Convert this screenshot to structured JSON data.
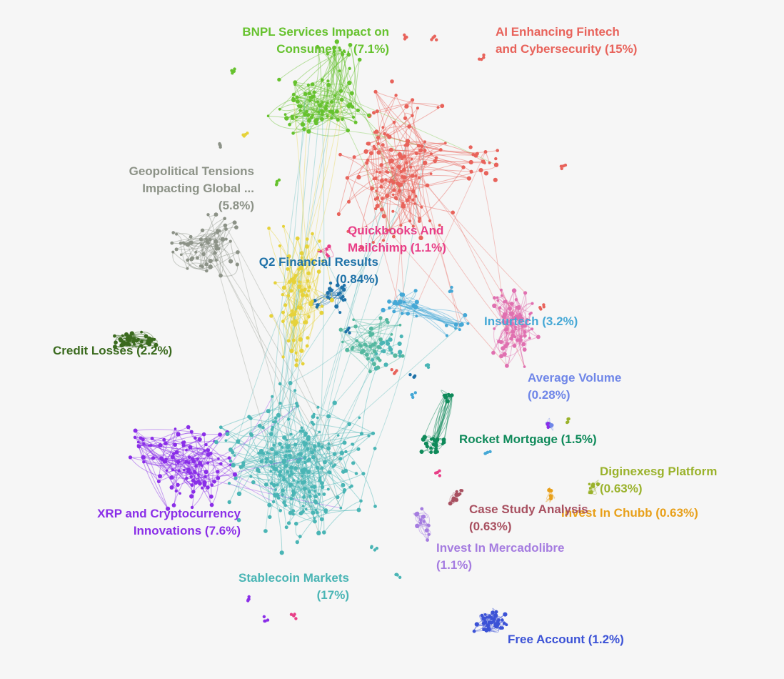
{
  "chart_data": {
    "type": "network",
    "clusters": [
      {
        "id": "ai",
        "lines": [
          "AI Enhancing Fintech",
          "and Cybersecurity (15%)"
        ],
        "share": 15,
        "color": "#e8635b"
      },
      {
        "id": "bnpl",
        "lines": [
          "BNPL Services Impact on",
          "Consumer ... (7.1%)"
        ],
        "share": 7.1,
        "color": "#66c22e"
      },
      {
        "id": "geo",
        "lines": [
          "Geopolitical Tensions",
          "Impacting Global ...",
          "(5.8%)"
        ],
        "share": 5.8,
        "color": "#8c9287"
      },
      {
        "id": "quick",
        "lines": [
          "Quickbooks And",
          "Mailchimp (1.1%)"
        ],
        "share": 1.1,
        "color": "#e83e87"
      },
      {
        "id": "q2",
        "lines": [
          "Q2 Financial Results",
          "(0.84%)"
        ],
        "share": 0.84,
        "color": "#1f72a8"
      },
      {
        "id": "insur",
        "lines": [
          "Insurtech (3.2%)"
        ],
        "share": 3.2,
        "color": "#45a8d6"
      },
      {
        "id": "credit",
        "lines": [
          "Credit Losses (2.2%)"
        ],
        "share": 2.2,
        "color": "#3a6a1e"
      },
      {
        "id": "avgvol",
        "lines": [
          "Average Volume",
          "(0.28%)"
        ],
        "share": 0.28,
        "color": "#6f86e8"
      },
      {
        "id": "rocket",
        "lines": [
          "Rocket Mortgage  (1.5%)"
        ],
        "share": 1.5,
        "color": "#0f8a5a"
      },
      {
        "id": "diginex",
        "lines": [
          "Diginexesg Platform",
          "(0.63%)"
        ],
        "share": 0.63,
        "color": "#9ab22b"
      },
      {
        "id": "xrp",
        "lines": [
          "XRP and Cryptocurrency",
          "Innovations (7.6%)"
        ],
        "share": 7.6,
        "color": "#8a2ee8"
      },
      {
        "id": "case",
        "lines": [
          "Case Study Analysis",
          "(0.63%)"
        ],
        "share": 0.63,
        "color": "#a85060"
      },
      {
        "id": "chubb",
        "lines": [
          "Invest In Chubb  (0.63%)"
        ],
        "share": 0.63,
        "color": "#e8a01a"
      },
      {
        "id": "merca",
        "lines": [
          "Invest In Mercadolibre",
          "(1.1%)"
        ],
        "share": 1.1,
        "color": "#a57ce0"
      },
      {
        "id": "stable",
        "lines": [
          "Stablecoin Markets",
          "(17%)"
        ],
        "share": 17,
        "color": "#4ab5b5"
      },
      {
        "id": "free",
        "lines": [
          "Free Account (1.2%)"
        ],
        "share": 1.2,
        "color": "#3b52d6"
      }
    ]
  }
}
